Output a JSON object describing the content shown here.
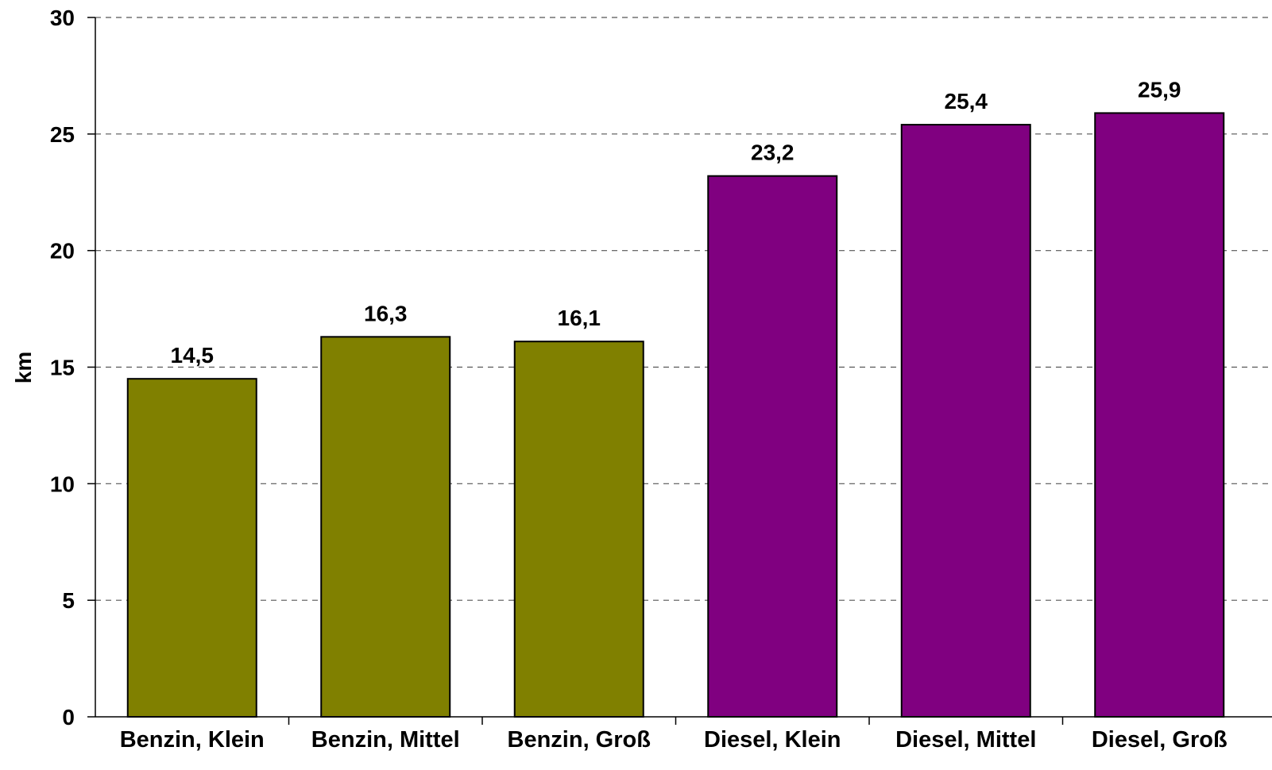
{
  "chart_data": {
    "type": "bar",
    "categories": [
      "Benzin, Klein",
      "Benzin, Mittel",
      "Benzin, Groß",
      "Diesel, Klein",
      "Diesel, Mittel",
      "Diesel, Groß"
    ],
    "values": [
      14.5,
      16.3,
      16.1,
      23.2,
      25.4,
      25.9
    ],
    "value_labels": [
      "14,5",
      "16,3",
      "16,1",
      "23,2",
      "25,4",
      "25,9"
    ],
    "bar_colors": [
      "#808000",
      "#808000",
      "#808000",
      "#800080",
      "#800080",
      "#800080"
    ],
    "ylabel": "km",
    "ylim": [
      0,
      30
    ],
    "yticks": [
      "0",
      "5",
      "10",
      "15",
      "20",
      "25",
      "30"
    ],
    "grid": "horizontal dashed",
    "legend": "none"
  }
}
